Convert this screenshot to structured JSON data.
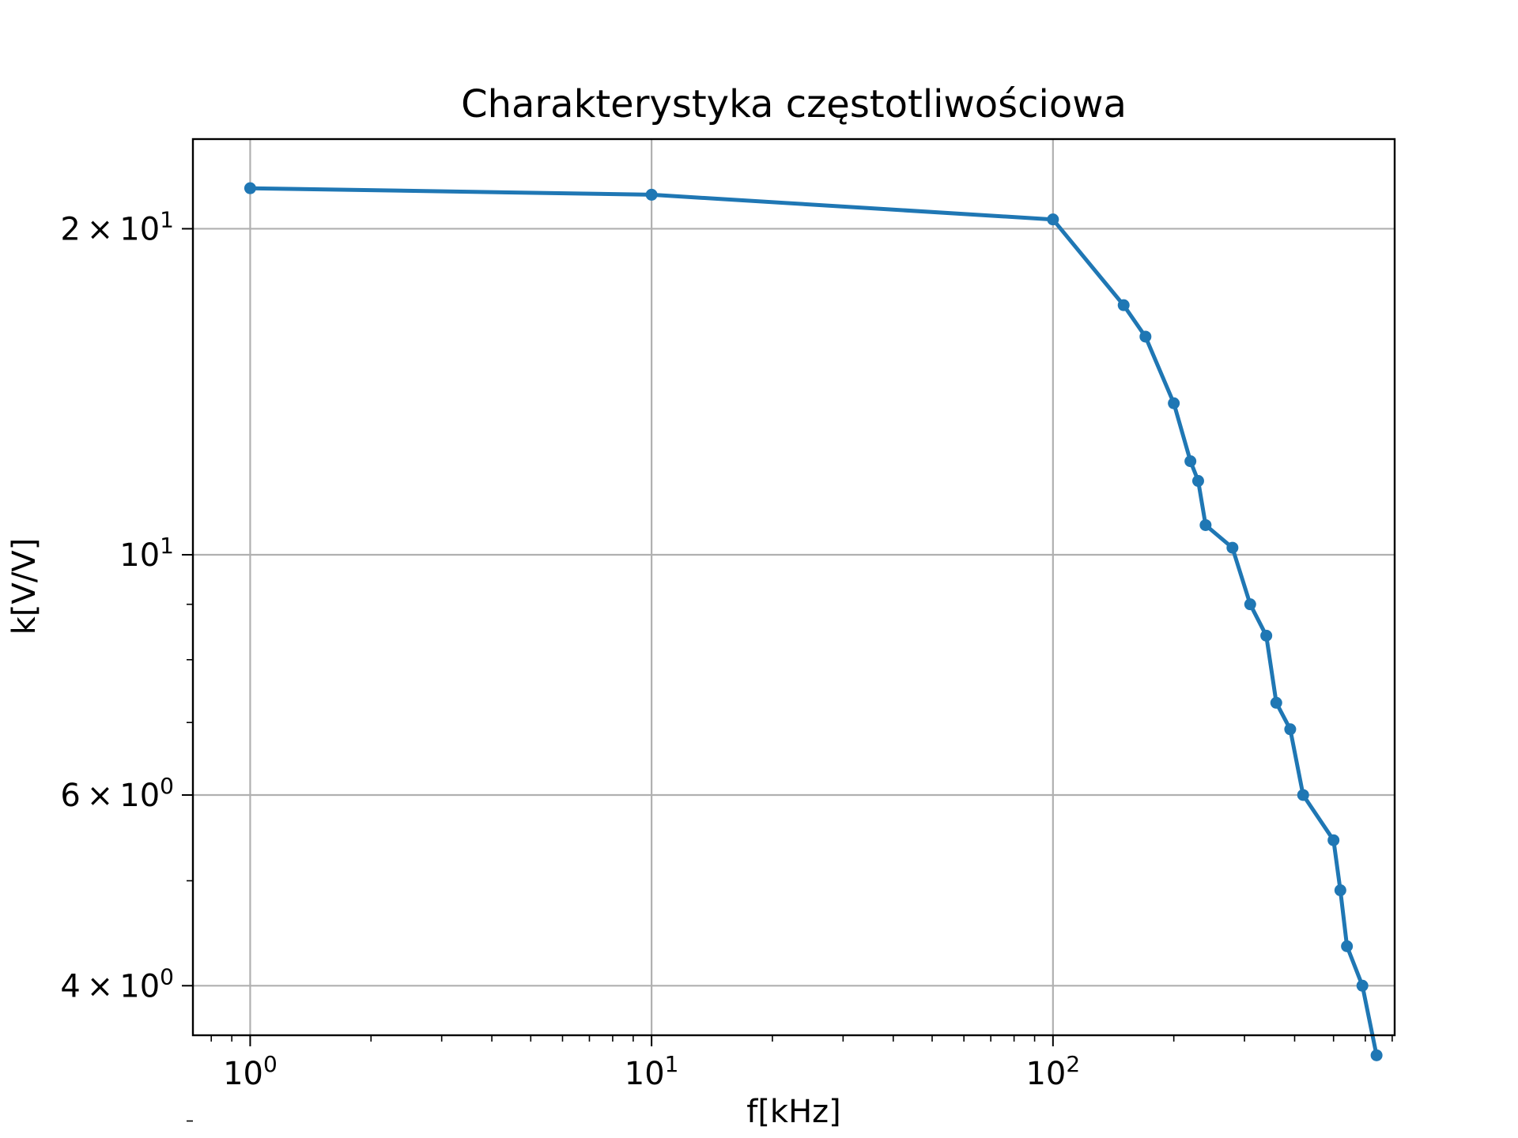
{
  "chart_data": {
    "type": "line",
    "title": "Charakterystyka częstotliwościowa",
    "xlabel": "f[kHz]",
    "ylabel": "k[V/V]",
    "xscale": "log",
    "yscale": "log",
    "xlim": [
      0.72,
      710
    ],
    "ylim": [
      3.6,
      24.2
    ],
    "grid": true,
    "color": "#1f77b4",
    "grid_color": "#b0b0b0",
    "x_ticks": [
      {
        "value": 1,
        "base": "10",
        "exp": "0"
      },
      {
        "value": 10,
        "base": "10",
        "exp": "1"
      },
      {
        "value": 100,
        "base": "10",
        "exp": "2"
      }
    ],
    "y_ticks": [
      {
        "value": 20,
        "mant": "2",
        "exp": "1"
      },
      {
        "value": 10,
        "mant": "",
        "exp": "1"
      },
      {
        "value": 6,
        "mant": "6",
        "exp": "0"
      },
      {
        "value": 4,
        "mant": "4",
        "exp": "0"
      }
    ],
    "y_minor_ticks": [
      3,
      5,
      7,
      8,
      9
    ],
    "x_minor_ticks": [
      0.8,
      0.9,
      2,
      3,
      4,
      5,
      6,
      7,
      8,
      9,
      20,
      30,
      40,
      50,
      60,
      70,
      80,
      90,
      200,
      300,
      400,
      500,
      600,
      700
    ],
    "series": [
      {
        "x": [
          1,
          10,
          100,
          150,
          170,
          200,
          220,
          230,
          240,
          280,
          310,
          340,
          360,
          390,
          420,
          500,
          520,
          540,
          590,
          640
        ],
        "y": [
          21.8,
          21.5,
          20.4,
          17.0,
          15.9,
          13.8,
          12.2,
          11.7,
          10.65,
          10.15,
          9.0,
          8.42,
          7.3,
          6.9,
          6.0,
          5.45,
          4.9,
          4.35,
          4.0,
          3.45
        ]
      }
    ]
  }
}
